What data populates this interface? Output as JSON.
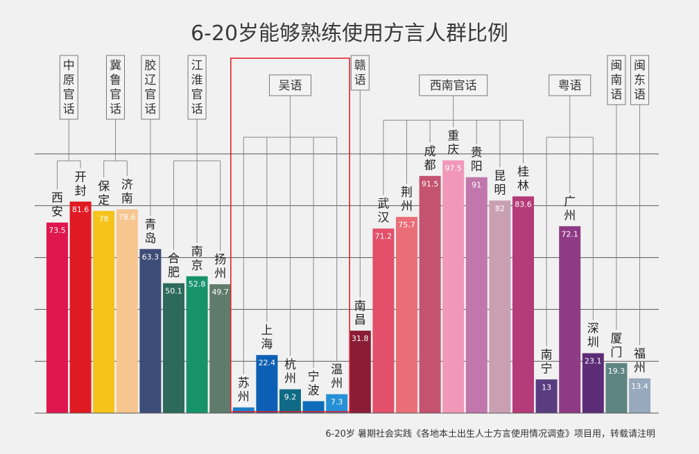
{
  "chart_data": {
    "type": "bar",
    "title": "6-20岁能够熟练使用方言人群比例",
    "footnote": "6-20岁 暑期社会实践《各地本土出生人士方言使用情况调查》项目用，转载请注明",
    "ylim": [
      0,
      100
    ],
    "grid": true,
    "categories": [
      "西安",
      "开封",
      "保定",
      "济南",
      "青岛",
      "合肥",
      "南京",
      "扬州",
      "苏州",
      "上海",
      "杭州",
      "宁波",
      "温州",
      "南昌",
      "武汉",
      "荆州",
      "成都",
      "重庆",
      "贵阳",
      "昆明",
      "桂林",
      "南宁",
      "广州",
      "深圳",
      "厦门",
      "福州"
    ],
    "values": [
      73.5,
      81.6,
      78,
      78.6,
      63.3,
      50.1,
      52.8,
      49.7,
      2.2,
      22.4,
      9.2,
      4.6,
      7.3,
      31.8,
      71.2,
      75.7,
      91.5,
      97.5,
      91,
      82,
      83.6,
      13,
      72.1,
      23.1,
      19.3,
      13.4
    ],
    "value_labels": [
      "73.5",
      "81.6",
      "78",
      "78.6",
      "63.3",
      "50.1",
      "52.8",
      "49.7",
      "2.2",
      "22.4",
      "9.2",
      "4.6",
      "7.3",
      "31.8",
      "71.2",
      "75.7",
      "91.5",
      "97.5",
      "91",
      "82",
      "83.6",
      "13",
      "72.1",
      "23.1",
      "19.3",
      "13.4"
    ],
    "colors": [
      "#e0174e",
      "#e01a22",
      "#f6c31b",
      "#f7c58f",
      "#3e4d77",
      "#2d6a5c",
      "#17936a",
      "#5f7b6b",
      "#1c7fc9",
      "#0c5fb4",
      "#0f6a86",
      "#0d6dba",
      "#2590d5",
      "#8a1d35",
      "#e2506a",
      "#ea6e78",
      "#c3536f",
      "#f198b8",
      "#c177ab",
      "#c9a0b2",
      "#b43a78",
      "#5a3d80",
      "#8f3a84",
      "#5c2c76",
      "#5e8582",
      "#97a9bc"
    ],
    "groups": [
      {
        "name": "中原官话",
        "members": [
          0,
          1
        ]
      },
      {
        "name": "冀鲁官话",
        "members": [
          2,
          3
        ]
      },
      {
        "name": "胶辽官话",
        "members": [
          4
        ]
      },
      {
        "name": "江淮官话",
        "members": [
          5,
          6,
          7
        ]
      },
      {
        "name": "吴语",
        "members": [
          8,
          9,
          10,
          11,
          12
        ]
      },
      {
        "name": "赣语",
        "members": [
          13
        ]
      },
      {
        "name": "西南官话",
        "members": [
          14,
          15,
          16,
          17,
          18,
          19,
          20
        ]
      },
      {
        "name": "粤语",
        "members": [
          21,
          22,
          23
        ]
      },
      {
        "name": "闽南语",
        "members": [
          24
        ]
      },
      {
        "name": "闽东语",
        "members": [
          25
        ]
      }
    ],
    "highlight_group": "吴语",
    "highlight_color": "#e0202a"
  }
}
